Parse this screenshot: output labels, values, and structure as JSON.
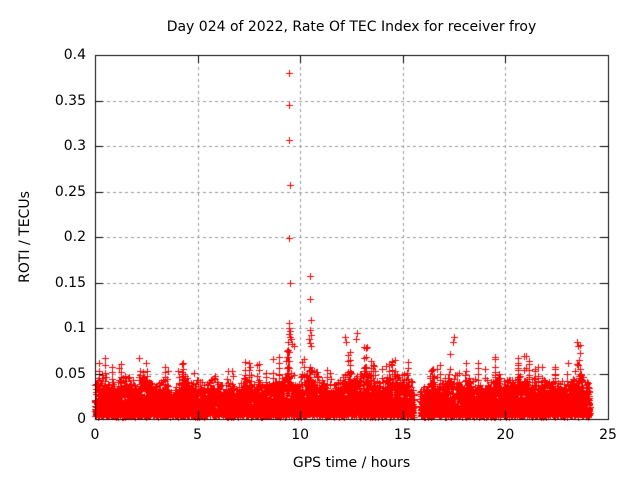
{
  "chart_data": {
    "type": "scatter",
    "title": "Day 024 of 2022, Rate Of TEC Index for receiver froy",
    "xlabel": "GPS time / hours",
    "ylabel": "ROTI / TECUs",
    "xlim": [
      0,
      25
    ],
    "ylim": [
      0,
      0.4
    ],
    "xticks": [
      0,
      5,
      10,
      15,
      20,
      25
    ],
    "yticks": [
      0,
      0.05,
      0.1,
      0.15,
      0.2,
      0.25,
      0.3,
      0.35,
      0.4
    ],
    "xtick_labels": [
      "0",
      "5",
      "10",
      "15",
      "20",
      "25"
    ],
    "ytick_labels": [
      "0",
      "0.05",
      "0.1",
      "0.15",
      "0.2",
      "0.25",
      "0.3",
      "0.35",
      "0.4"
    ],
    "grid": "dashed-gray-at-all-ticks",
    "legend": "none",
    "marker": "plus",
    "marker_color": "#ff0000",
    "grid_color": "#999999",
    "axis_color": "#000000",
    "background_color": "#ffffff",
    "data_range_hours": [
      0,
      24.1
    ],
    "data_gap_hours": [
      15.52,
      15.85
    ],
    "outliers": [
      [
        9.45,
        0.38
      ],
      [
        9.45,
        0.345
      ],
      [
        9.45,
        0.307
      ],
      [
        9.5,
        0.257
      ],
      [
        9.45,
        0.199
      ],
      [
        9.5,
        0.15
      ],
      [
        9.45,
        0.105
      ],
      [
        9.45,
        0.1
      ],
      [
        9.5,
        0.097
      ],
      [
        9.45,
        0.093
      ],
      [
        9.5,
        0.09
      ],
      [
        9.55,
        0.088
      ],
      [
        9.4,
        0.085
      ],
      [
        9.6,
        0.082
      ],
      [
        9.7,
        0.08
      ],
      [
        10.5,
        0.157
      ],
      [
        10.5,
        0.132
      ],
      [
        10.55,
        0.109
      ],
      [
        10.5,
        0.098
      ],
      [
        10.55,
        0.092
      ],
      [
        10.45,
        0.088
      ],
      [
        10.5,
        0.084
      ],
      [
        10.55,
        0.08
      ],
      [
        12.2,
        0.09
      ],
      [
        12.25,
        0.085
      ],
      [
        12.75,
        0.094
      ],
      [
        12.7,
        0.088
      ],
      [
        13.25,
        0.079
      ],
      [
        17.5,
        0.09
      ],
      [
        17.45,
        0.085
      ],
      [
        23.5,
        0.085
      ],
      [
        23.55,
        0.08
      ]
    ],
    "noise_envelope_max": [
      [
        0,
        0.055
      ],
      [
        0.5,
        0.07
      ],
      [
        1,
        0.05
      ],
      [
        1.5,
        0.065
      ],
      [
        2,
        0.055
      ],
      [
        2.3,
        0.075
      ],
      [
        2.6,
        0.055
      ],
      [
        3,
        0.05
      ],
      [
        3.3,
        0.06
      ],
      [
        3.7,
        0.045
      ],
      [
        4,
        0.05
      ],
      [
        4.4,
        0.065
      ],
      [
        4.8,
        0.05
      ],
      [
        5,
        0.06
      ],
      [
        5.4,
        0.05
      ],
      [
        5.8,
        0.065
      ],
      [
        6.1,
        0.05
      ],
      [
        6.5,
        0.055
      ],
      [
        7,
        0.05
      ],
      [
        7.4,
        0.065
      ],
      [
        7.7,
        0.055
      ],
      [
        8,
        0.06
      ],
      [
        8.3,
        0.05
      ],
      [
        8.7,
        0.065
      ],
      [
        9,
        0.07
      ],
      [
        9.45,
        0.075
      ],
      [
        9.7,
        0.07
      ],
      [
        10,
        0.06
      ],
      [
        10.5,
        0.08
      ],
      [
        11,
        0.065
      ],
      [
        11.4,
        0.05
      ],
      [
        11.8,
        0.055
      ],
      [
        12.2,
        0.07
      ],
      [
        12.5,
        0.075
      ],
      [
        12.8,
        0.07
      ],
      [
        13.2,
        0.08
      ],
      [
        13.5,
        0.06
      ],
      [
        14,
        0.055
      ],
      [
        14.5,
        0.065
      ],
      [
        15,
        0.07
      ],
      [
        15.4,
        0.06
      ],
      [
        15.9,
        0.045
      ],
      [
        16.2,
        0.05
      ],
      [
        16.5,
        0.055
      ],
      [
        17,
        0.06
      ],
      [
        17.5,
        0.075
      ],
      [
        18,
        0.06
      ],
      [
        18.5,
        0.065
      ],
      [
        19,
        0.055
      ],
      [
        19.5,
        0.07
      ],
      [
        20,
        0.06
      ],
      [
        20.5,
        0.065
      ],
      [
        21,
        0.07
      ],
      [
        21.5,
        0.055
      ],
      [
        22,
        0.06
      ],
      [
        22.5,
        0.055
      ],
      [
        23,
        0.06
      ],
      [
        23.5,
        0.085
      ],
      [
        23.8,
        0.07
      ],
      [
        24.1,
        0.055
      ]
    ],
    "noise": {
      "seed": 20220124,
      "step_hours": 0.02,
      "points_per_step": 6
    }
  }
}
